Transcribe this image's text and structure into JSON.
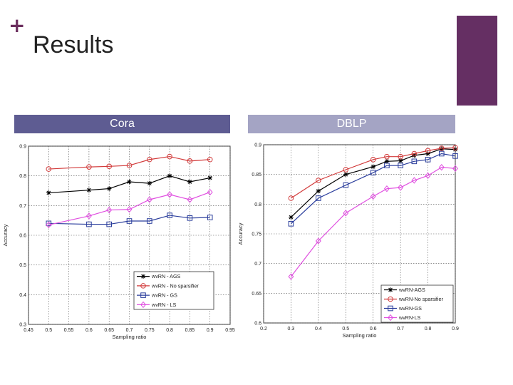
{
  "slide": {
    "title": "Results",
    "labels": [
      "Cora",
      "DBLP"
    ],
    "colors": {
      "accent": "#652f63",
      "plus": "#6b2e5e",
      "label_left": "#5e5c92",
      "label_right": "#a4a4c4"
    }
  },
  "chart_data": [
    {
      "type": "line",
      "xlabel": "Sampling ratio",
      "ylabel": "Accuracy",
      "xlim": [
        0.45,
        0.95
      ],
      "ylim": [
        0.3,
        0.9
      ],
      "xticks": [
        "0.45",
        "0.5",
        "0.55",
        "0.6",
        "0.65",
        "0.7",
        "0.75",
        "0.8",
        "0.85",
        "0.9",
        "0.95"
      ],
      "yticks": [
        "0.3",
        "0.4",
        "0.5",
        "0.6",
        "0.7",
        "0.8",
        "0.9"
      ],
      "legend_position": "bottom-right",
      "legend": [
        "wvRN - AGS",
        "wvRN - No sparsifier",
        "wvRN - GS",
        "wvRN - LS"
      ],
      "series": [
        {
          "name": "wvRN - AGS",
          "color": "#000000",
          "marker": "star",
          "x": [
            0.5,
            0.6,
            0.65,
            0.7,
            0.75,
            0.8,
            0.85,
            0.9
          ],
          "y": [
            0.743,
            0.752,
            0.757,
            0.78,
            0.775,
            0.8,
            0.78,
            0.793
          ]
        },
        {
          "name": "wvRN - No sparsifier",
          "color": "#d23a3a",
          "marker": "circle",
          "x": [
            0.5,
            0.6,
            0.65,
            0.7,
            0.75,
            0.8,
            0.85,
            0.9
          ],
          "y": [
            0.823,
            0.83,
            0.832,
            0.835,
            0.855,
            0.865,
            0.85,
            0.855
          ]
        },
        {
          "name": "wvRN - GS",
          "color": "#2a3d9c",
          "marker": "square",
          "x": [
            0.5,
            0.6,
            0.65,
            0.7,
            0.75,
            0.8,
            0.85,
            0.9
          ],
          "y": [
            0.64,
            0.637,
            0.637,
            0.648,
            0.648,
            0.667,
            0.658,
            0.66
          ]
        },
        {
          "name": "wvRN - LS",
          "color": "#e04fe0",
          "marker": "diamond",
          "x": [
            0.5,
            0.6,
            0.65,
            0.7,
            0.75,
            0.8,
            0.85,
            0.9
          ],
          "y": [
            0.635,
            0.665,
            0.685,
            0.687,
            0.72,
            0.737,
            0.72,
            0.745
          ]
        }
      ]
    },
    {
      "type": "line",
      "xlabel": "Sampling ratio",
      "ylabel": "Accuracy",
      "xlim": [
        0.2,
        0.9
      ],
      "ylim": [
        0.6,
        0.9
      ],
      "xticks": [
        "0.2",
        "0.3",
        "0.4",
        "0.5",
        "0.6",
        "0.7",
        "0.8",
        "0.9"
      ],
      "yticks": [
        "0.6",
        "0.65",
        "0.7",
        "0.75",
        "0.8",
        "0.85",
        "0.9"
      ],
      "legend_position": "bottom-right",
      "legend": [
        "wvRN-AGS",
        "wvRN-No sparsifier",
        "wvRN-GS",
        "wvRN-LS"
      ],
      "series": [
        {
          "name": "wvRN-AGS",
          "color": "#000000",
          "marker": "star",
          "x": [
            0.3,
            0.4,
            0.5,
            0.6,
            0.65,
            0.7,
            0.75,
            0.8,
            0.85,
            0.9
          ],
          "y": [
            0.778,
            0.822,
            0.85,
            0.863,
            0.872,
            0.873,
            0.882,
            0.885,
            0.893,
            0.892
          ]
        },
        {
          "name": "wvRN-No sparsifier",
          "color": "#d23a3a",
          "marker": "circle",
          "x": [
            0.3,
            0.4,
            0.5,
            0.6,
            0.65,
            0.7,
            0.75,
            0.8,
            0.85,
            0.9
          ],
          "y": [
            0.81,
            0.84,
            0.858,
            0.875,
            0.88,
            0.88,
            0.885,
            0.89,
            0.894,
            0.895
          ]
        },
        {
          "name": "wvRN-GS",
          "color": "#2a3d9c",
          "marker": "square",
          "x": [
            0.3,
            0.4,
            0.5,
            0.6,
            0.65,
            0.7,
            0.75,
            0.8,
            0.85,
            0.9
          ],
          "y": [
            0.767,
            0.81,
            0.832,
            0.853,
            0.865,
            0.865,
            0.872,
            0.875,
            0.885,
            0.881
          ]
        },
        {
          "name": "wvRN-LS",
          "color": "#e04fe0",
          "marker": "diamond",
          "x": [
            0.3,
            0.4,
            0.5,
            0.6,
            0.65,
            0.7,
            0.75,
            0.8,
            0.85,
            0.9
          ],
          "y": [
            0.678,
            0.738,
            0.785,
            0.813,
            0.826,
            0.828,
            0.84,
            0.848,
            0.862,
            0.86
          ]
        }
      ]
    }
  ]
}
